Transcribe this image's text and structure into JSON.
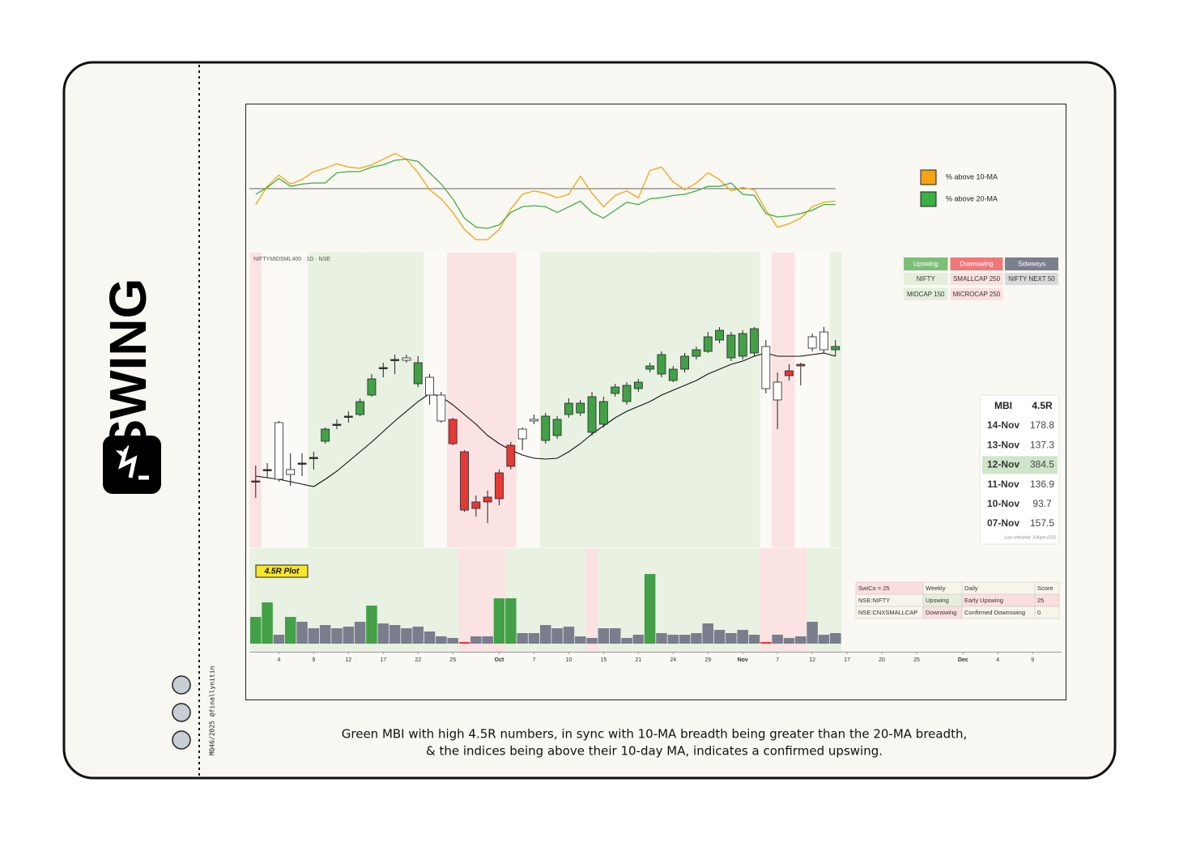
{
  "brand": "SWING",
  "credit": "MQ46/2025 @finallynitin",
  "caption": [
    "Green MBI with high 4.5R numbers, in sync with 10-MA breadth being greater than the 20-MA breadth,",
    "& the indices being above their 10-day MA, indicates a confirmed upswing."
  ],
  "chart_data": [
    {
      "type": "line",
      "xlim": [
        -0.5,
        69.5
      ],
      "ylim": [
        0,
        100
      ],
      "reference": 50,
      "series": [
        {
          "name": "% above 10-MA",
          "color": "#f5a312",
          "values": [
            36,
            52,
            62,
            54,
            58,
            65,
            68,
            72,
            69,
            68,
            71,
            76,
            81,
            76,
            64,
            49,
            41,
            29,
            14,
            5,
            5,
            14,
            32,
            45,
            48,
            46,
            42,
            45,
            61,
            46,
            34,
            44,
            48,
            42,
            66,
            69,
            56,
            49,
            55,
            64,
            58,
            48,
            51,
            49,
            31,
            16,
            19,
            24,
            34,
            38,
            39
          ]
        },
        {
          "name": "% above 20-MA",
          "color": "#3cb043",
          "values": [
            45,
            51,
            59,
            52,
            54,
            55,
            55,
            64,
            65,
            65,
            69,
            71,
            75,
            76,
            74,
            64,
            54,
            41,
            24,
            16,
            15,
            18,
            29,
            34,
            35,
            34,
            29,
            34,
            39,
            29,
            24,
            31,
            38,
            36,
            41,
            42,
            44,
            45,
            48,
            52,
            52,
            55,
            45,
            44,
            28,
            25,
            26,
            28,
            31,
            36,
            36
          ]
        }
      ]
    },
    {
      "type": "candlestick",
      "title": "NIFTYMIDSML400 · 1D · NSE",
      "xlim": [
        -0.5,
        69.5
      ],
      "ylim": [
        0,
        364
      ],
      "open": [
        82,
        96,
        84,
        90,
        104,
        111,
        131,
        152,
        162,
        164,
        188,
        222,
        232,
        231,
        202,
        188,
        156,
        158,
        118,
        56,
        62,
        60,
        100,
        134,
        156,
        132,
        138,
        164,
        166,
        142,
        152,
        190,
        180,
        196,
        220,
        214,
        206,
        220,
        236,
        242,
        256,
        234,
        236,
        240,
        248,
        182,
        218,
        226,
        246,
        244,
        244
      ],
      "high": [
        101,
        104,
        156,
        116,
        116,
        118,
        148,
        158,
        168,
        184,
        214,
        228,
        238,
        238,
        236,
        214,
        192,
        160,
        120,
        64,
        70,
        96,
        130,
        148,
        164,
        166,
        162,
        184,
        182,
        192,
        186,
        202,
        204,
        208,
        228,
        242,
        224,
        240,
        248,
        266,
        272,
        266,
        268,
        272,
        256,
        216,
        226,
        228,
        264,
        272,
        256
      ],
      "low": [
        61,
        86,
        81,
        76,
        88,
        96,
        128,
        146,
        154,
        162,
        186,
        210,
        214,
        228,
        198,
        176,
        154,
        126,
        44,
        38,
        30,
        52,
        96,
        120,
        152,
        128,
        134,
        160,
        162,
        138,
        148,
        186,
        176,
        192,
        216,
        210,
        204,
        216,
        232,
        240,
        252,
        230,
        232,
        236,
        190,
        146,
        206,
        200,
        242,
        240,
        236
      ],
      "close": [
        82,
        96,
        154,
        96,
        104,
        111,
        146,
        152,
        162,
        180,
        208,
        222,
        232,
        234,
        228,
        210,
        188,
        128,
        46,
        48,
        56,
        92,
        126,
        146,
        158,
        162,
        158,
        178,
        178,
        186,
        180,
        198,
        200,
        204,
        224,
        238,
        220,
        236,
        244,
        260,
        268,
        262,
        264,
        270,
        196,
        204,
        212,
        224,
        260,
        266,
        248
      ],
      "colors": [
        "#c62828",
        "#333333",
        "#ffffff",
        "#ffffff",
        "#333333",
        "#333333",
        "#43a047",
        "#333333",
        "#333333",
        "#43a047",
        "#43a047",
        "#333333",
        "#333333",
        "#ffffff",
        "#43a047",
        "#ffffff",
        "#ffffff",
        "#e53935",
        "#e53935",
        "#e53935",
        "#e53935",
        "#e53935",
        "#e53935",
        "#ffffff",
        "#ffffff",
        "#43a047",
        "#43a047",
        "#43a047",
        "#43a047",
        "#43a047",
        "#43a047",
        "#43a047",
        "#43a047",
        "#43a047",
        "#43a047",
        "#43a047",
        "#43a047",
        "#43a047",
        "#43a047",
        "#43a047",
        "#43a047",
        "#43a047",
        "#43a047",
        "#43a047",
        "#ffffff",
        "#ffffff",
        "#e53935",
        "#e53935",
        "#ffffff",
        "#ffffff",
        "#43a047"
      ],
      "background_colors": [
        "#fbe3e3",
        "#fbfaf6",
        "#fbfaf6",
        "#fbfaf6",
        "#fbfaf6",
        "#e8f1e2",
        "#e8f1e2",
        "#e8f1e2",
        "#e8f1e2",
        "#e8f1e2",
        "#e8f1e2",
        "#e8f1e2",
        "#e8f1e2",
        "#e8f1e2",
        "#e8f1e2",
        "#fbfaf6",
        "#fbfaf6",
        "#fbe3e3",
        "#fbe3e3",
        "#fbe3e3",
        "#fbe3e3",
        "#fbe3e3",
        "#fbe3e3",
        "#fbfaf6",
        "#fbfaf6",
        "#e8f1e2",
        "#e8f1e2",
        "#e8f1e2",
        "#e8f1e2",
        "#e8f1e2",
        "#e8f1e2",
        "#e8f1e2",
        "#e8f1e2",
        "#e8f1e2",
        "#e8f1e2",
        "#e8f1e2",
        "#e8f1e2",
        "#e8f1e2",
        "#e8f1e2",
        "#e8f1e2",
        "#e8f1e2",
        "#e8f1e2",
        "#e8f1e2",
        "#e8f1e2",
        "#fbfaf6",
        "#fbe3e3",
        "#fbe3e3",
        "#fbfaf6",
        "#fbfaf6",
        "#fbfaf6",
        "#e8f1e2"
      ],
      "ma_values": [
        88,
        86,
        84,
        81,
        78,
        75,
        84,
        94,
        106,
        118,
        130,
        143,
        156,
        168,
        180,
        190,
        186,
        176,
        164,
        152,
        138,
        128,
        120,
        114,
        110,
        109,
        110,
        118,
        128,
        140,
        150,
        160,
        168,
        174,
        180,
        188,
        194,
        200,
        206,
        214,
        220,
        226,
        230,
        236,
        240,
        236,
        236,
        236,
        238,
        240,
        236
      ],
      "ma_color": "#111111"
    },
    {
      "type": "bar",
      "title": "4.5R Plot",
      "xlim": [
        -0.5,
        69.5
      ],
      "ylim": [
        0,
        100
      ],
      "values": [
        33,
        51,
        11,
        33,
        27,
        19,
        23,
        19,
        21,
        27,
        47,
        25,
        23,
        19,
        21,
        15,
        9,
        7,
        2,
        9,
        9,
        56,
        56,
        13,
        13,
        23,
        19,
        21,
        9,
        7,
        19,
        19,
        7,
        11,
        86,
        13,
        11,
        11,
        13,
        25,
        17,
        13,
        17,
        11,
        2,
        11,
        7,
        9,
        27,
        11,
        13
      ],
      "colors": [
        "#43a047",
        "#43a047",
        "#7a7d8c",
        "#43a047",
        "#7a7d8c",
        "#7a7d8c",
        "#7a7d8c",
        "#7a7d8c",
        "#7a7d8c",
        "#7a7d8c",
        "#43a047",
        "#7a7d8c",
        "#7a7d8c",
        "#7a7d8c",
        "#7a7d8c",
        "#7a7d8c",
        "#7a7d8c",
        "#7a7d8c",
        "#e53935",
        "#7a7d8c",
        "#7a7d8c",
        "#43a047",
        "#43a047",
        "#7a7d8c",
        "#7a7d8c",
        "#7a7d8c",
        "#7a7d8c",
        "#7a7d8c",
        "#7a7d8c",
        "#7a7d8c",
        "#7a7d8c",
        "#7a7d8c",
        "#7a7d8c",
        "#7a7d8c",
        "#43a047",
        "#7a7d8c",
        "#7a7d8c",
        "#7a7d8c",
        "#7a7d8c",
        "#7a7d8c",
        "#7a7d8c",
        "#7a7d8c",
        "#7a7d8c",
        "#7a7d8c",
        "#e53935",
        "#7a7d8c",
        "#7a7d8c",
        "#7a7d8c",
        "#7a7d8c",
        "#7a7d8c",
        "#7a7d8c"
      ],
      "background_colors": [
        "#e8f1e2",
        "#e8f1e2",
        "#e8f1e2",
        "#e8f1e2",
        "#e8f1e2",
        "#e8f1e2",
        "#e8f1e2",
        "#e8f1e2",
        "#e8f1e2",
        "#e8f1e2",
        "#e8f1e2",
        "#e8f1e2",
        "#e8f1e2",
        "#e8f1e2",
        "#e8f1e2",
        "#e8f1e2",
        "#e8f1e2",
        "#e8f1e2",
        "#fbe3e3",
        "#fbe3e3",
        "#fbe3e3",
        "#fbe3e3",
        "#e8f1e2",
        "#e8f1e2",
        "#e8f1e2",
        "#e8f1e2",
        "#e8f1e2",
        "#e8f1e2",
        "#e8f1e2",
        "#fbe3e3",
        "#e8f1e2",
        "#e8f1e2",
        "#e8f1e2",
        "#e8f1e2",
        "#e8f1e2",
        "#e8f1e2",
        "#e8f1e2",
        "#e8f1e2",
        "#e8f1e2",
        "#e8f1e2",
        "#e8f1e2",
        "#e8f1e2",
        "#e8f1e2",
        "#e8f1e2",
        "#fbe3e3",
        "#fbe3e3",
        "#fbe3e3",
        "#fbe3e3",
        "#e8f1e2",
        "#e8f1e2",
        "#e8f1e2"
      ],
      "xticks": [
        {
          "value": 2,
          "label": "4"
        },
        {
          "value": 5,
          "label": "9"
        },
        {
          "value": 8,
          "label": "12"
        },
        {
          "value": 11,
          "label": "17"
        },
        {
          "value": 14,
          "label": "22"
        },
        {
          "value": 17,
          "label": "25"
        },
        {
          "value": 21,
          "label": "Oct"
        },
        {
          "value": 24,
          "label": "7"
        },
        {
          "value": 27,
          "label": "10"
        },
        {
          "value": 30,
          "label": "15"
        },
        {
          "value": 33,
          "label": "21"
        },
        {
          "value": 36,
          "label": "24"
        },
        {
          "value": 39,
          "label": "29"
        },
        {
          "value": 42,
          "label": "Nov"
        },
        {
          "value": 45,
          "label": "7"
        },
        {
          "value": 48,
          "label": "12"
        },
        {
          "value": 51,
          "label": "17"
        },
        {
          "value": 54,
          "label": "20"
        },
        {
          "value": 57,
          "label": "25"
        },
        {
          "value": 61,
          "label": "Dec"
        },
        {
          "value": 64,
          "label": "4"
        },
        {
          "value": 67,
          "label": "9"
        }
      ]
    }
  ],
  "regime_table": {
    "columns": [
      {
        "header": "Upswing",
        "color": "#7cbf78",
        "cell_color": "#e3efdc",
        "items": [
          "NIFTY",
          "MIDCAP 150"
        ]
      },
      {
        "header": "Downswing",
        "color": "#f07878",
        "cell_color": "#fbe0e0",
        "items": [
          "SMALLCAP 250",
          "MICROCAP 250"
        ]
      },
      {
        "header": "Sideways",
        "color": "#7a7f8c",
        "cell_color": "#d9d9dc",
        "items": [
          "NIFTY NEXT 50"
        ]
      }
    ]
  },
  "mbi_table": {
    "header": [
      "MBI",
      "4.5R"
    ],
    "rows": [
      [
        "14-Nov",
        178.8
      ],
      [
        "13-Nov",
        137.3
      ],
      [
        "12-Nov",
        384.5
      ],
      [
        "11-Nov",
        136.9
      ],
      [
        "10-Nov",
        93.7
      ],
      [
        "07-Nov",
        157.5
      ]
    ],
    "highlight_row": 2,
    "highlight_color": "#cfe5c9",
    "footnote": "Last refreshed: 3:40pm EOD"
  },
  "swico_table": {
    "header": [
      "SwiCo = 25",
      "Weekly",
      "Daily",
      "Score"
    ],
    "rows": [
      [
        "NSE:NIFTY",
        "Upswing",
        "Early Upswing",
        25
      ],
      [
        "NSE:CNXSMALLCAP",
        "Downswing",
        "Confirmed Downswing",
        0
      ]
    ],
    "header_colors": [
      "#fbdede",
      "#f7f4ea",
      "#f7f4ea",
      "#f7f4ea"
    ],
    "row_colors": [
      [
        "#f7f4ea",
        "#e3efdc",
        "#fbdede",
        "#fbdede"
      ],
      [
        "#f7f4ea",
        "#fbdede",
        "#f7f4ea",
        "#f7f4ea"
      ]
    ]
  }
}
